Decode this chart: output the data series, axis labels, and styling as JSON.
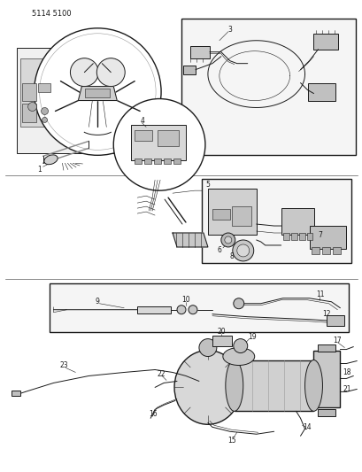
{
  "title_text": "5114 5100",
  "bg_color": "#ffffff",
  "line_color": "#1a1a1a",
  "fig_width": 4.1,
  "fig_height": 5.33,
  "dpi": 100,
  "gray_light": "#c8c8c8",
  "gray_med": "#a8a8a8",
  "gray_dark": "#888888",
  "separator_color": "#555555"
}
